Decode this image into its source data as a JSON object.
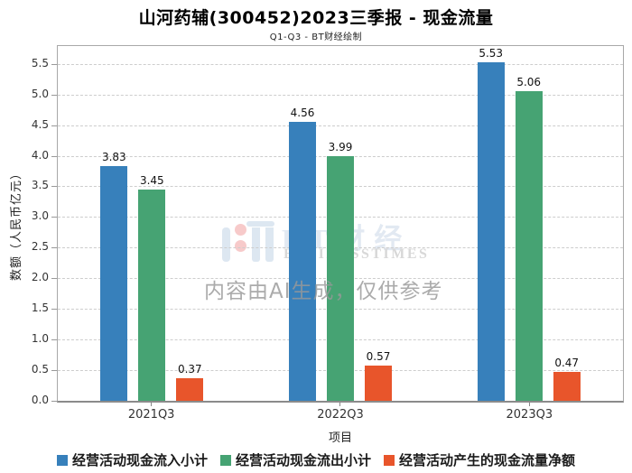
{
  "chart_data": {
    "type": "bar",
    "title": "山河药辅(300452)2023三季报 - 现金流量",
    "subtitle": "Q1-Q3 - BT财经绘制",
    "xlabel": "项目",
    "ylabel": "数额（人民币亿元）",
    "categories": [
      "2021Q3",
      "2022Q3",
      "2023Q3"
    ],
    "series": [
      {
        "name": "经营活动现金流入小计",
        "color": "#3780BB",
        "values": [
          3.83,
          4.56,
          5.53
        ]
      },
      {
        "name": "经营活动现金流出小计",
        "color": "#46A373",
        "values": [
          3.45,
          3.99,
          5.06
        ]
      },
      {
        "name": "经营活动产生的现金流量净额",
        "color": "#E8552B",
        "values": [
          0.37,
          0.57,
          0.47
        ]
      }
    ],
    "ylim": [
      0,
      5.79
    ],
    "ytick_step": 0.5,
    "ytick_max": 5.5,
    "grid": true,
    "legend_position": "bottom"
  },
  "watermark": {
    "brand": "BT财经",
    "brand_sub": "BUSINESSTIMES",
    "ai_notice": "内容由AI生成，仅供参考"
  }
}
